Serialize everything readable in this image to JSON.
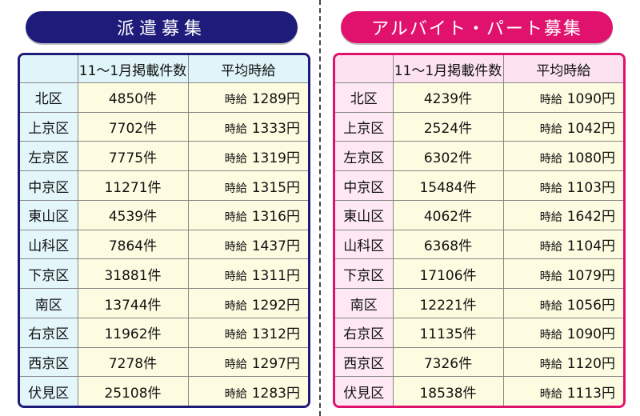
{
  "haken": {
    "title": "派遣募集",
    "headers": [
      "",
      "11〜1月掲載件数",
      "平均時給"
    ],
    "wage_prefix": "時給",
    "rows": [
      {
        "ward": "北区",
        "count": "4850件",
        "wage": "1289円"
      },
      {
        "ward": "上京区",
        "count": "7702件",
        "wage": "1333円"
      },
      {
        "ward": "左京区",
        "count": "7775件",
        "wage": "1319円"
      },
      {
        "ward": "中京区",
        "count": "11271件",
        "wage": "1315円"
      },
      {
        "ward": "東山区",
        "count": "4539件",
        "wage": "1316円"
      },
      {
        "ward": "山科区",
        "count": "7864件",
        "wage": "1437円"
      },
      {
        "ward": "下京区",
        "count": "31881件",
        "wage": "1311円"
      },
      {
        "ward": "南区",
        "count": "13744件",
        "wage": "1292円"
      },
      {
        "ward": "右京区",
        "count": "11962件",
        "wage": "1312円"
      },
      {
        "ward": "西京区",
        "count": "7278件",
        "wage": "1297円"
      },
      {
        "ward": "伏見区",
        "count": "25108件",
        "wage": "1283円"
      }
    ]
  },
  "part": {
    "title": "アルバイト・パート募集",
    "headers": [
      "",
      "11〜1月掲載件数",
      "平均時給"
    ],
    "wage_prefix": "時給",
    "rows": [
      {
        "ward": "北区",
        "count": "4239件",
        "wage": "1090円"
      },
      {
        "ward": "上京区",
        "count": "2524件",
        "wage": "1042円"
      },
      {
        "ward": "左京区",
        "count": "6302件",
        "wage": "1080円"
      },
      {
        "ward": "中京区",
        "count": "15484件",
        "wage": "1103円"
      },
      {
        "ward": "東山区",
        "count": "4062件",
        "wage": "1642円"
      },
      {
        "ward": "山科区",
        "count": "6368件",
        "wage": "1104円"
      },
      {
        "ward": "下京区",
        "count": "17106件",
        "wage": "1079円"
      },
      {
        "ward": "南区",
        "count": "12221件",
        "wage": "1056円"
      },
      {
        "ward": "右京区",
        "count": "11135件",
        "wage": "1090円"
      },
      {
        "ward": "西京区",
        "count": "7326件",
        "wage": "1120円"
      },
      {
        "ward": "伏見区",
        "count": "18538件",
        "wage": "1113円"
      }
    ]
  }
}
